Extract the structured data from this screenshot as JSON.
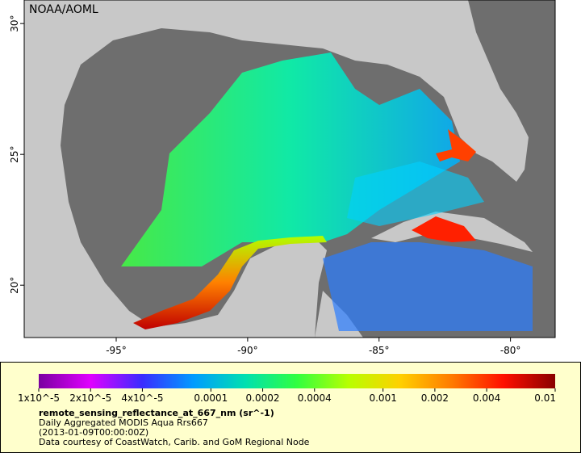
{
  "map": {
    "title": "NOAA/AOML",
    "xlim": [
      -98.5,
      -78.3
    ],
    "ylim": [
      18.0,
      30.9
    ],
    "xticks": [
      {
        "value": -95,
        "label": "-95°"
      },
      {
        "value": -90,
        "label": "-90°"
      },
      {
        "value": -85,
        "label": "-85°"
      },
      {
        "value": -80,
        "label": "-80°"
      }
    ],
    "yticks": [
      {
        "value": 30,
        "label": "30°"
      },
      {
        "value": 25,
        "label": "25°"
      },
      {
        "value": 20,
        "label": "20°"
      }
    ]
  },
  "colorbar": {
    "log": true,
    "lim": [
      1e-05,
      0.01
    ],
    "colors": [
      "#7a00a0",
      "#e000ff",
      "#3a2cff",
      "#009cff",
      "#00e0b0",
      "#30ff40",
      "#b8ff00",
      "#ffd000",
      "#ff7a00",
      "#ff1000",
      "#8a0000"
    ],
    "ticks": [
      {
        "value": 1e-05,
        "label": "1x10^-5"
      },
      {
        "value": 2e-05,
        "label": "2x10^-5"
      },
      {
        "value": 4e-05,
        "label": "4x10^-5"
      },
      {
        "value": 0.0001,
        "label": "0.0001"
      },
      {
        "value": 0.0002,
        "label": "0.0002"
      },
      {
        "value": 0.0004,
        "label": "0.0004"
      },
      {
        "value": 0.001,
        "label": "0.001"
      },
      {
        "value": 0.002,
        "label": "0.002"
      },
      {
        "value": 0.004,
        "label": "0.004"
      },
      {
        "value": 0.01,
        "label": "0.01"
      }
    ]
  },
  "legend": {
    "variable": "remote_sensing_reflectance_at_667_nm (sr^-1)",
    "lines": [
      "Daily Aggregated MODIS Aqua Rrs667",
      "(2013-01-09T00:00:00Z)",
      "Data courtesy of CoastWatch, Carib. and GoM Regional Node"
    ]
  }
}
